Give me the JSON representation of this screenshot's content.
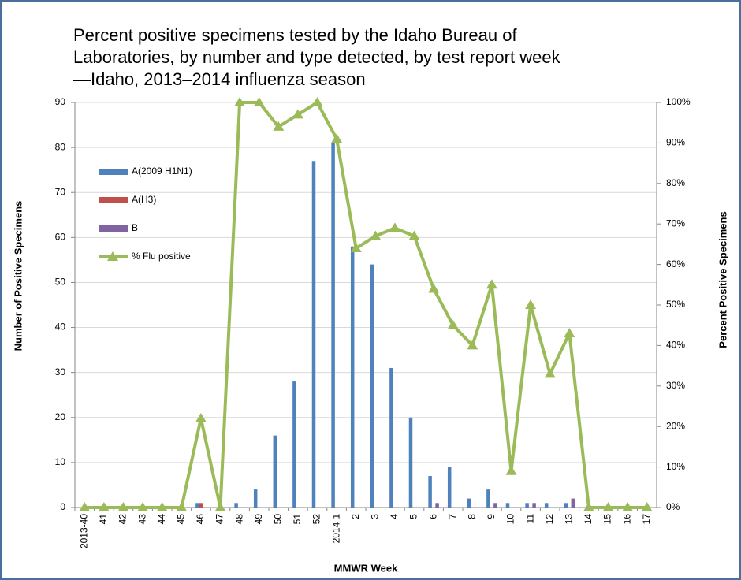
{
  "chart_data": {
    "type": "bar-line",
    "title": [
      "Percent positive specimens tested by the Idaho Bureau of",
      "Laboratories, by number and type detected, by test report week",
      "—Idaho, 2013–2014 influenza season"
    ],
    "x_label": "MMWR Week",
    "y_label": "Number of Positive Specimens",
    "y2_label": "Percent Positive Specimens",
    "categories": [
      "2013-40",
      "41",
      "42",
      "43",
      "44",
      "45",
      "46",
      "47",
      "48",
      "49",
      "50",
      "51",
      "52",
      "2014-1",
      "2",
      "3",
      "4",
      "5",
      "6",
      "7",
      "8",
      "9",
      "10",
      "11",
      "12",
      "13",
      "14",
      "15",
      "16",
      "17"
    ],
    "series": [
      {
        "name": "A(2009 H1N1)",
        "color": "#4f81bd",
        "kind": "bar",
        "values": [
          0,
          0,
          0,
          0,
          0,
          0,
          1,
          0,
          1,
          4,
          16,
          28,
          77,
          81,
          58,
          54,
          31,
          20,
          7,
          9,
          2,
          4,
          1,
          1,
          1,
          1,
          0,
          0,
          0,
          0
        ]
      },
      {
        "name": "A(H3)",
        "color": "#c0504d",
        "kind": "bar",
        "values": [
          0,
          0,
          0,
          0,
          0,
          0,
          1,
          0,
          0,
          0,
          0,
          0,
          0,
          0,
          0,
          0,
          0,
          0,
          0,
          0,
          0,
          0,
          0,
          0,
          0,
          0,
          0,
          0,
          0,
          0
        ]
      },
      {
        "name": "B",
        "color": "#8064a2",
        "kind": "bar",
        "values": [
          0,
          0,
          0,
          0,
          0,
          0,
          0,
          0,
          0,
          0,
          0,
          0,
          0,
          0,
          0,
          0,
          0,
          0,
          1,
          0,
          0,
          1,
          0,
          1,
          0,
          2,
          0,
          0,
          0,
          0
        ]
      },
      {
        "name": "% Flu positive",
        "color": "#9bbb59",
        "kind": "line",
        "axis": "y2",
        "values": [
          0,
          0,
          0,
          0,
          0,
          0,
          22,
          0,
          100,
          100,
          94,
          97,
          100,
          91,
          64,
          67,
          69,
          67,
          54,
          45,
          40,
          55,
          9,
          50,
          33,
          43,
          0,
          0,
          0,
          0
        ]
      }
    ],
    "ylim": [
      0,
      90
    ],
    "yticks": [
      0,
      10,
      20,
      30,
      40,
      50,
      60,
      70,
      80,
      90
    ],
    "y2lim": [
      0,
      100
    ],
    "y2ticks": [
      {
        "value": 0,
        "label": "0%"
      },
      {
        "value": 10,
        "label": "10%"
      },
      {
        "value": 20,
        "label": "20%"
      },
      {
        "value": 30,
        "label": "30%"
      },
      {
        "value": 40,
        "label": "40%"
      },
      {
        "value": 50,
        "label": "50%"
      },
      {
        "value": 60,
        "label": "60%"
      },
      {
        "value": 70,
        "label": "70%"
      },
      {
        "value": 80,
        "label": "80%"
      },
      {
        "value": 90,
        "label": "90%"
      },
      {
        "value": 100,
        "label": "100%"
      }
    ],
    "grid": true
  }
}
